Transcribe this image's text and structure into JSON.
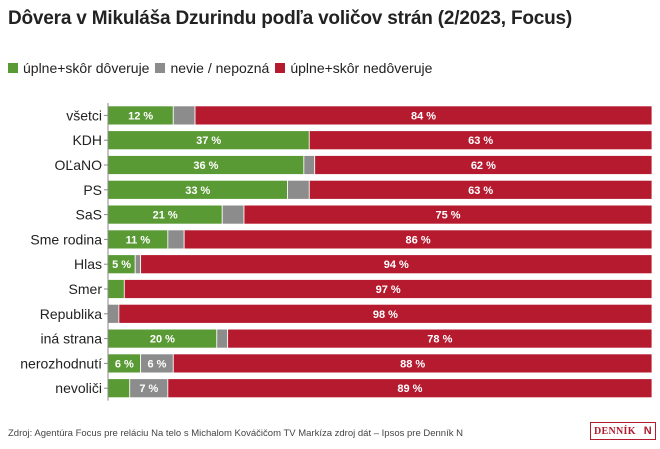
{
  "title": "Dôvera v Mikuláša Dzurindu podľa voličov strán (2/2023, Focus)",
  "legend": [
    {
      "label": "úplne+skôr dôveruje",
      "color": "#5a9a35"
    },
    {
      "label": "nevie / nepozná",
      "color": "#8c8c8c"
    },
    {
      "label": "úplne+skôr nedôveruje",
      "color": "#b51a2f"
    }
  ],
  "footer": {
    "source": "Zdroj: Agentúra Focus pre reláciu Na telo s Michalom Kováčičom TV Markíza zdroj dát – Ipsos pre Denník N",
    "logo_text": "DENNÍK",
    "logo_mark": "N"
  },
  "chart_data": {
    "type": "bar",
    "orientation": "horizontal",
    "stacked": true,
    "xlim": [
      0,
      100
    ],
    "unit": "%",
    "categories": [
      "všetci",
      "KDH",
      "OĽaNO",
      "PS",
      "SaS",
      "Sme rodina",
      "Hlas",
      "Smer",
      "Republika",
      "iná strana",
      "nerozhodnutí",
      "nevoliči"
    ],
    "series": [
      {
        "name": "úplne+skôr dôveruje",
        "color": "#5a9a35",
        "values": [
          12,
          37,
          36,
          33,
          21,
          11,
          5,
          3,
          0,
          20,
          6,
          4
        ],
        "labels": [
          "12 %",
          "37 %",
          "36 %",
          "33 %",
          "21 %",
          "11 %",
          "5 %",
          "",
          "",
          "20 %",
          "6 %",
          ""
        ]
      },
      {
        "name": "nevie / nepozná",
        "color": "#8c8c8c",
        "values": [
          4,
          0,
          2,
          4,
          4,
          3,
          1,
          0,
          2,
          2,
          6,
          7
        ],
        "labels": [
          "",
          "",
          "",
          "",
          "",
          "",
          "",
          "",
          "",
          "",
          "6 %",
          "7 %"
        ]
      },
      {
        "name": "úplne+skôr nedôveruje",
        "color": "#b51a2f",
        "values": [
          84,
          63,
          62,
          63,
          75,
          86,
          94,
          97,
          98,
          78,
          88,
          89
        ],
        "labels": [
          "84 %",
          "63 %",
          "62 %",
          "63 %",
          "75 %",
          "86 %",
          "94 %",
          "97 %",
          "98 %",
          "78 %",
          "88 %",
          "89 %"
        ]
      }
    ]
  }
}
